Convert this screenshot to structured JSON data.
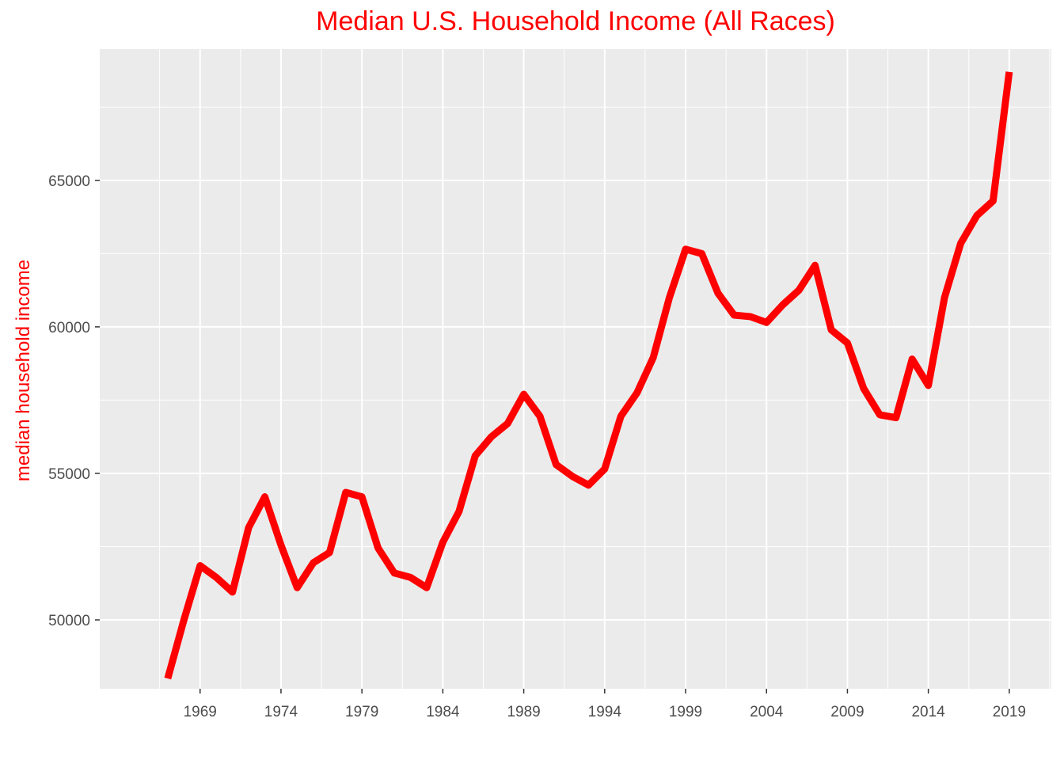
{
  "chart_data": {
    "type": "line",
    "title": "Median U.S. Household Income (All Races)",
    "xlabel": "",
    "ylabel": "median household income",
    "line_color": "#ff0000",
    "panel_background": "#ebebeb",
    "grid_color": "#ffffff",
    "xlim": [
      1962.8,
      2021.6
    ],
    "ylim": [
      47650,
      69480
    ],
    "x_ticks": [
      1969,
      1974,
      1979,
      1984,
      1989,
      1994,
      1999,
      2004,
      2009,
      2014,
      2019
    ],
    "x_tick_labels": [
      "1969",
      "1974",
      "1979",
      "1984",
      "1989",
      "1994",
      "1999",
      "2004",
      "2009",
      "2014",
      "2019"
    ],
    "y_ticks": [
      50000,
      55000,
      60000,
      65000
    ],
    "y_tick_labels": [
      "50000",
      "55000",
      "60000",
      "65000"
    ],
    "series": [
      {
        "x": [
          1967,
          1968,
          1969,
          1970,
          1971,
          1972,
          1973,
          1974,
          1975,
          1976,
          1977,
          1978,
          1979,
          1980,
          1981,
          1982,
          1983,
          1984,
          1985,
          1986,
          1987,
          1988,
          1989,
          1990,
          1991,
          1992,
          1993,
          1994,
          1995,
          1996,
          1997,
          1998,
          1999,
          2000,
          2001,
          2002,
          2003,
          2004,
          2005,
          2006,
          2007,
          2008,
          2009,
          2010,
          2011,
          2012,
          2013,
          2014,
          2015,
          2016,
          2017,
          2018,
          2019
        ],
        "y": [
          48000,
          50000,
          51850,
          51450,
          50950,
          53150,
          54200,
          52550,
          51100,
          51950,
          52300,
          54350,
          54200,
          52450,
          51600,
          51450,
          51100,
          52650,
          53700,
          55600,
          56250,
          56700,
          57700,
          56950,
          55300,
          54900,
          54600,
          55150,
          56950,
          57750,
          58950,
          61000,
          62650,
          62500,
          61150,
          60400,
          60350,
          60150,
          60750,
          61250,
          62100,
          59900,
          59450,
          57900,
          57000,
          56900,
          58900,
          58000,
          61000,
          62850,
          63800,
          64300,
          68700
        ]
      }
    ]
  }
}
